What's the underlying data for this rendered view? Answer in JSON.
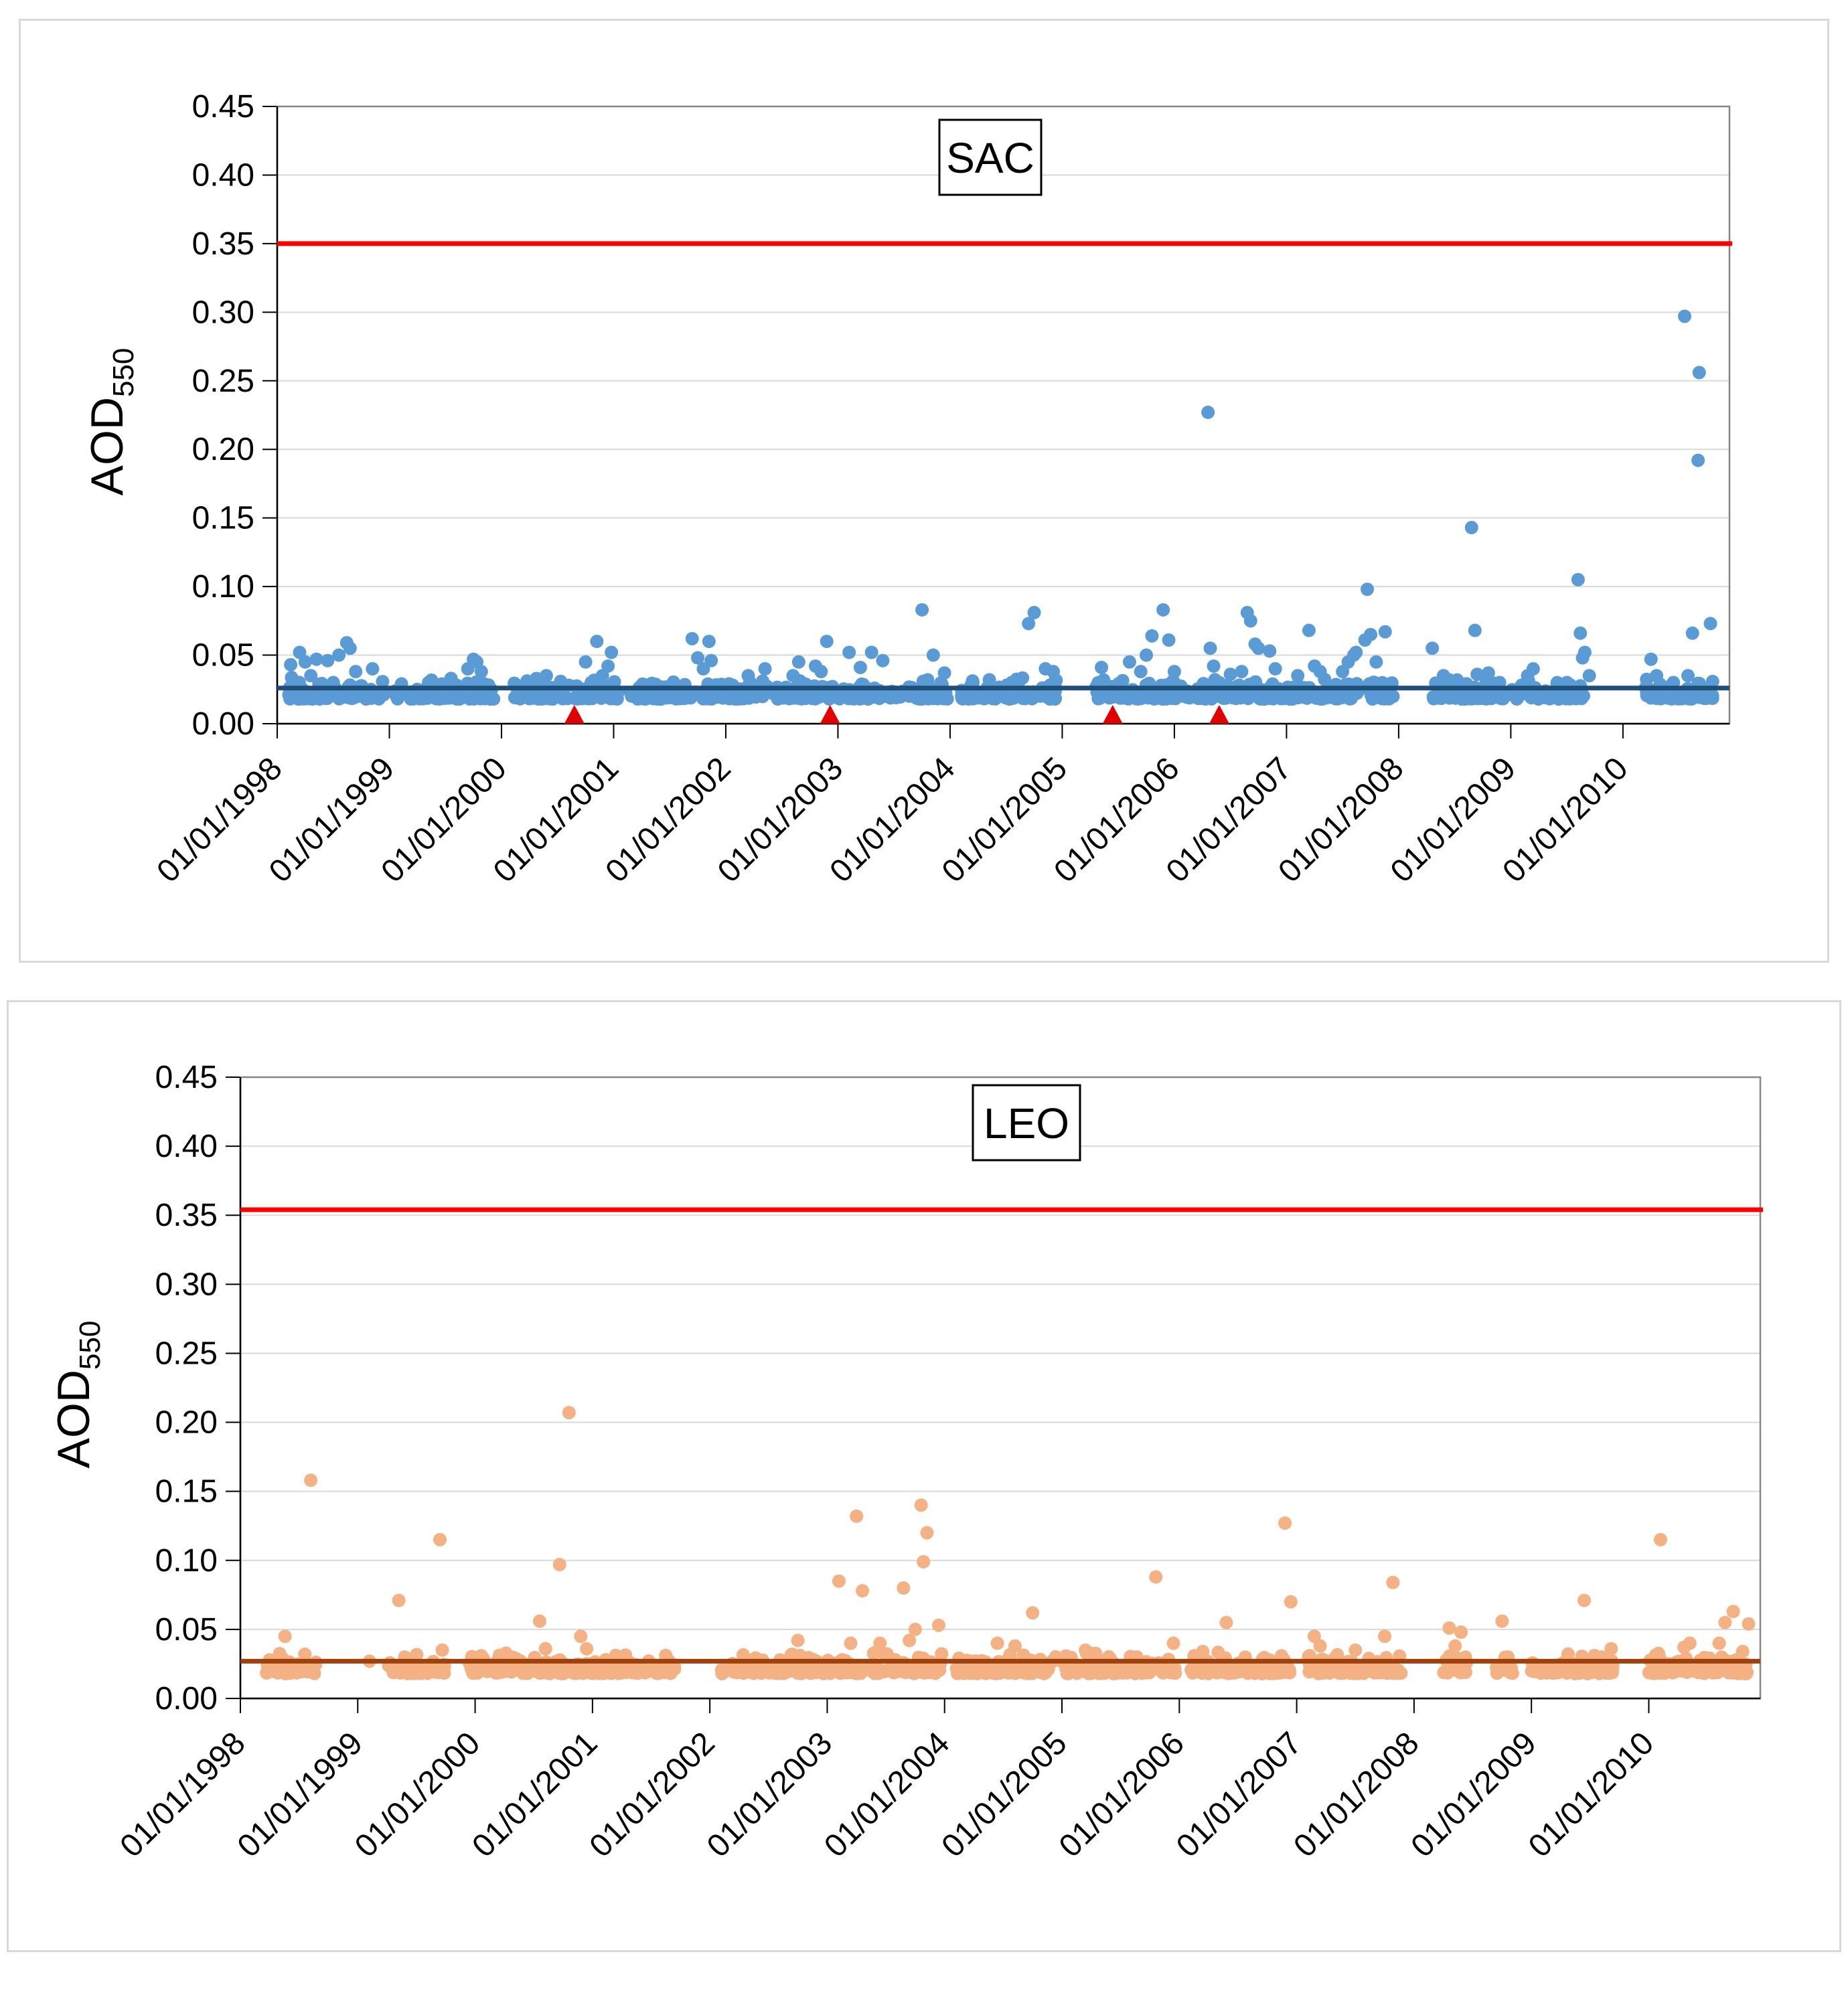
{
  "chart_data": [
    {
      "type": "scatter",
      "title": "SAC",
      "ylabel_main": "AOD",
      "ylabel_sub": "550",
      "xlabel": "",
      "ylim": [
        0,
        0.45
      ],
      "yticks": [
        "0.00",
        "0.05",
        "0.10",
        "0.15",
        "0.20",
        "0.25",
        "0.30",
        "0.35",
        "0.40",
        "0.45"
      ],
      "xlim": [
        1998.0,
        2010.95
      ],
      "xticks": [
        {
          "value": 1998,
          "label": "01/01/1998"
        },
        {
          "value": 1999,
          "label": "01/01/1999"
        },
        {
          "value": 2000,
          "label": "01/01/2000"
        },
        {
          "value": 2001,
          "label": "01/01/2001"
        },
        {
          "value": 2002,
          "label": "01/01/2002"
        },
        {
          "value": 2003,
          "label": "01/01/2003"
        },
        {
          "value": 2004,
          "label": "01/01/2004"
        },
        {
          "value": 2005,
          "label": "01/01/2005"
        },
        {
          "value": 2006,
          "label": "01/01/2006"
        },
        {
          "value": 2007,
          "label": "01/01/2007"
        },
        {
          "value": 2008,
          "label": "01/01/2008"
        },
        {
          "value": 2009,
          "label": "01/01/2009"
        },
        {
          "value": 2010,
          "label": "01/01/2010"
        }
      ],
      "threshold": {
        "value": 0.35,
        "color": "#ff0000"
      },
      "baseline": {
        "value": 0.026,
        "color": "#1f4e79"
      },
      "point_color": "#5b9bd5",
      "markers": {
        "x": [
          2000.65,
          2002.93,
          2005.45,
          2006.4
        ],
        "color": "#e00000"
      },
      "points": [
        [
          1998.12,
          0.043
        ],
        [
          1998.2,
          0.052
        ],
        [
          1998.25,
          0.045
        ],
        [
          1998.35,
          0.047
        ],
        [
          1998.45,
          0.046
        ],
        [
          1998.55,
          0.05
        ],
        [
          1998.62,
          0.059
        ],
        [
          1998.65,
          0.055
        ],
        [
          1998.7,
          0.038
        ],
        [
          1998.85,
          0.04
        ],
        [
          1998.3,
          0.035
        ],
        [
          1998.5,
          0.03
        ],
        [
          1999.35,
          0.03
        ],
        [
          1999.55,
          0.033
        ],
        [
          1999.7,
          0.04
        ],
        [
          1999.75,
          0.047
        ],
        [
          1999.78,
          0.045
        ],
        [
          1999.82,
          0.038
        ],
        [
          1999.6,
          0.028
        ],
        [
          1999.45,
          0.025
        ],
        [
          2000.4,
          0.035
        ],
        [
          2000.75,
          0.045
        ],
        [
          2000.85,
          0.06
        ],
        [
          2000.9,
          0.035
        ],
        [
          2000.95,
          0.042
        ],
        [
          2000.98,
          0.052
        ],
        [
          2000.8,
          0.03
        ],
        [
          2000.6,
          0.028
        ],
        [
          2001.7,
          0.062
        ],
        [
          2001.75,
          0.048
        ],
        [
          2001.8,
          0.04
        ],
        [
          2001.85,
          0.06
        ],
        [
          2001.87,
          0.046
        ],
        [
          2002.2,
          0.035
        ],
        [
          2002.35,
          0.04
        ],
        [
          2002.6,
          0.035
        ],
        [
          2002.65,
          0.045
        ],
        [
          2002.8,
          0.042
        ],
        [
          2002.85,
          0.038
        ],
        [
          2002.9,
          0.06
        ],
        [
          2003.1,
          0.052
        ],
        [
          2003.2,
          0.041
        ],
        [
          2003.3,
          0.052
        ],
        [
          2003.4,
          0.046
        ],
        [
          2003.75,
          0.083
        ],
        [
          2003.8,
          0.032
        ],
        [
          2003.85,
          0.05
        ],
        [
          2003.95,
          0.037
        ],
        [
          2004.35,
          0.032
        ],
        [
          2004.55,
          0.03
        ],
        [
          2004.7,
          0.073
        ],
        [
          2004.75,
          0.081
        ],
        [
          2004.85,
          0.04
        ],
        [
          2004.92,
          0.038
        ],
        [
          2005.35,
          0.041
        ],
        [
          2005.6,
          0.045
        ],
        [
          2005.7,
          0.038
        ],
        [
          2005.75,
          0.05
        ],
        [
          2005.8,
          0.064
        ],
        [
          2005.9,
          0.083
        ],
        [
          2005.95,
          0.061
        ],
        [
          2006.0,
          0.038
        ],
        [
          2006.3,
          0.227
        ],
        [
          2006.32,
          0.055
        ],
        [
          2006.35,
          0.042
        ],
        [
          2006.4,
          0.03
        ],
        [
          2006.5,
          0.036
        ],
        [
          2006.6,
          0.038
        ],
        [
          2006.65,
          0.081
        ],
        [
          2006.68,
          0.075
        ],
        [
          2006.72,
          0.058
        ],
        [
          2006.75,
          0.055
        ],
        [
          2006.85,
          0.053
        ],
        [
          2006.9,
          0.04
        ],
        [
          2007.1,
          0.035
        ],
        [
          2007.2,
          0.068
        ],
        [
          2007.25,
          0.042
        ],
        [
          2007.3,
          0.038
        ],
        [
          2007.5,
          0.038
        ],
        [
          2007.55,
          0.045
        ],
        [
          2007.6,
          0.05
        ],
        [
          2007.62,
          0.052
        ],
        [
          2007.7,
          0.061
        ],
        [
          2007.72,
          0.098
        ],
        [
          2007.75,
          0.065
        ],
        [
          2007.8,
          0.045
        ],
        [
          2007.88,
          0.067
        ],
        [
          2008.3,
          0.055
        ],
        [
          2008.4,
          0.035
        ],
        [
          2008.45,
          0.032
        ],
        [
          2008.65,
          0.143
        ],
        [
          2008.68,
          0.068
        ],
        [
          2008.7,
          0.036
        ],
        [
          2008.8,
          0.037
        ],
        [
          2008.9,
          0.03
        ],
        [
          2009.15,
          0.035
        ],
        [
          2009.2,
          0.04
        ],
        [
          2009.6,
          0.105
        ],
        [
          2009.62,
          0.066
        ],
        [
          2009.64,
          0.048
        ],
        [
          2009.66,
          0.052
        ],
        [
          2009.7,
          0.035
        ],
        [
          2009.5,
          0.03
        ],
        [
          2010.25,
          0.047
        ],
        [
          2010.3,
          0.035
        ],
        [
          2010.55,
          0.297
        ],
        [
          2010.58,
          0.035
        ],
        [
          2010.62,
          0.066
        ],
        [
          2010.68,
          0.256
        ],
        [
          2010.67,
          0.192
        ],
        [
          2010.78,
          0.073
        ],
        [
          2010.45,
          0.03
        ]
      ],
      "dense_segments": [
        [
          1998.1,
          1998.95
        ],
        [
          1999.05,
          1999.95
        ],
        [
          2000.1,
          2001.05
        ],
        [
          2001.15,
          2002.0
        ],
        [
          2002.0,
          2002.95
        ],
        [
          2002.95,
          2003.5
        ],
        [
          2003.5,
          2003.98
        ],
        [
          2004.1,
          2004.95
        ],
        [
          2005.3,
          2006.15
        ],
        [
          2006.2,
          2007.0
        ],
        [
          2007.0,
          2007.95
        ],
        [
          2008.3,
          2008.95
        ],
        [
          2009.0,
          2009.65
        ],
        [
          2010.2,
          2010.8
        ]
      ]
    },
    {
      "type": "scatter",
      "title": "LEO",
      "ylabel_main": "AOD",
      "ylabel_sub": "550",
      "xlabel": "",
      "ylim": [
        0,
        0.45
      ],
      "yticks": [
        "0.00",
        "0.05",
        "0.10",
        "0.15",
        "0.20",
        "0.25",
        "0.30",
        "0.35",
        "0.40",
        "0.45"
      ],
      "xlim": [
        1998.0,
        2010.95
      ],
      "xticks": [
        {
          "value": 1998,
          "label": "01/01/1998"
        },
        {
          "value": 1999,
          "label": "01/01/1999"
        },
        {
          "value": 2000,
          "label": "01/01/2000"
        },
        {
          "value": 2001,
          "label": "01/01/2001"
        },
        {
          "value": 2002,
          "label": "01/01/2002"
        },
        {
          "value": 2003,
          "label": "01/01/2003"
        },
        {
          "value": 2004,
          "label": "01/01/2004"
        },
        {
          "value": 2005,
          "label": "01/01/2005"
        },
        {
          "value": 2006,
          "label": "01/01/2006"
        },
        {
          "value": 2007,
          "label": "01/01/2007"
        },
        {
          "value": 2008,
          "label": "01/01/2008"
        },
        {
          "value": 2009,
          "label": "01/01/2009"
        },
        {
          "value": 2010,
          "label": "01/01/2010"
        }
      ],
      "threshold": {
        "value": 0.354,
        "color": "#ff0000"
      },
      "baseline": {
        "value": 0.027,
        "color": "#a0400a"
      },
      "point_color": "#f4b183",
      "markers": {
        "x": [],
        "color": "#e00000"
      },
      "points": [
        [
          1998.25,
          0.028
        ],
        [
          1998.38,
          0.045
        ],
        [
          1998.55,
          0.032
        ],
        [
          1998.6,
          0.158
        ],
        [
          1999.1,
          0.027
        ],
        [
          1999.35,
          0.071
        ],
        [
          1999.4,
          0.03
        ],
        [
          1999.7,
          0.115
        ],
        [
          1999.72,
          0.035
        ],
        [
          2000.55,
          0.056
        ],
        [
          2000.6,
          0.036
        ],
        [
          2000.72,
          0.097
        ],
        [
          2000.8,
          0.207
        ],
        [
          2000.9,
          0.045
        ],
        [
          2000.95,
          0.036
        ],
        [
          2001.3,
          0.025
        ],
        [
          2002.7,
          0.032
        ],
        [
          2002.75,
          0.042
        ],
        [
          2003.1,
          0.085
        ],
        [
          2003.2,
          0.04
        ],
        [
          2003.25,
          0.132
        ],
        [
          2003.3,
          0.078
        ],
        [
          2003.45,
          0.04
        ],
        [
          2003.65,
          0.08
        ],
        [
          2003.7,
          0.042
        ],
        [
          2003.75,
          0.05
        ],
        [
          2003.8,
          0.14
        ],
        [
          2003.85,
          0.12
        ],
        [
          2003.82,
          0.099
        ],
        [
          2003.95,
          0.053
        ],
        [
          2004.45,
          0.04
        ],
        [
          2004.6,
          0.038
        ],
        [
          2004.75,
          0.062
        ],
        [
          2005.2,
          0.035
        ],
        [
          2005.8,
          0.088
        ],
        [
          2005.95,
          0.04
        ],
        [
          2006.2,
          0.034
        ],
        [
          2006.4,
          0.055
        ],
        [
          2006.9,
          0.127
        ],
        [
          2006.95,
          0.07
        ],
        [
          2007.15,
          0.045
        ],
        [
          2007.2,
          0.038
        ],
        [
          2007.5,
          0.035
        ],
        [
          2007.75,
          0.045
        ],
        [
          2007.82,
          0.084
        ],
        [
          2008.3,
          0.051
        ],
        [
          2008.4,
          0.048
        ],
        [
          2008.35,
          0.038
        ],
        [
          2008.75,
          0.056
        ],
        [
          2008.8,
          0.03
        ],
        [
          2009.45,
          0.071
        ],
        [
          2009.6,
          0.03
        ],
        [
          2009.68,
          0.036
        ],
        [
          2010.1,
          0.115
        ],
        [
          2010.3,
          0.037
        ],
        [
          2010.35,
          0.04
        ],
        [
          2010.6,
          0.04
        ],
        [
          2010.65,
          0.055
        ],
        [
          2010.72,
          0.063
        ],
        [
          2010.85,
          0.054
        ],
        [
          2010.8,
          0.034
        ]
      ],
      "dense_segments": [
        [
          1998.2,
          1998.65
        ],
        [
          1999.25,
          1999.75
        ],
        [
          1999.95,
          2000.45
        ],
        [
          2000.5,
          2000.95
        ],
        [
          2000.95,
          2001.7
        ],
        [
          2002.1,
          2002.8
        ],
        [
          2002.8,
          2003.5
        ],
        [
          2003.5,
          2003.98
        ],
        [
          2004.1,
          2004.95
        ],
        [
          2005.0,
          2006.0
        ],
        [
          2006.1,
          2006.95
        ],
        [
          2007.1,
          2007.9
        ],
        [
          2008.25,
          2008.45
        ],
        [
          2008.7,
          2008.85
        ],
        [
          2009.0,
          2009.7
        ],
        [
          2010.0,
          2010.85
        ]
      ]
    }
  ]
}
